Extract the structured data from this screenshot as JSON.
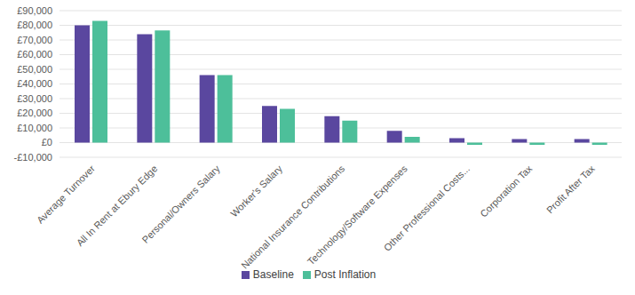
{
  "chart_data": {
    "type": "bar",
    "categories": [
      "Average Turnover",
      "All In Rent at Ebury Edge",
      "Personal/Owners Salary",
      "Worker's Salary",
      "National Insurance Contributions",
      "Technology/Software Expenses",
      "Other Professional Costs...",
      "Corporation Tax",
      "Profit After Tax"
    ],
    "series": [
      {
        "name": "Baseline",
        "color": "#5a479f",
        "values": [
          80000,
          74000,
          46000,
          25000,
          18000,
          8000,
          3000,
          2500,
          2500
        ]
      },
      {
        "name": "Post Inflation",
        "color": "#4dbf9a",
        "values": [
          83000,
          76500,
          46000,
          23000,
          15000,
          4000,
          -1500,
          -1500,
          -1500
        ]
      }
    ],
    "ylim": [
      -10000,
      90000
    ],
    "yticks": [
      {
        "value": -10000,
        "label": "-£10,000"
      },
      {
        "value": 0,
        "label": "£0"
      },
      {
        "value": 10000,
        "label": "£10,000"
      },
      {
        "value": 20000,
        "label": "£20,000"
      },
      {
        "value": 30000,
        "label": "£30,000"
      },
      {
        "value": 40000,
        "label": "£40,000"
      },
      {
        "value": 50000,
        "label": "£50,000"
      },
      {
        "value": 60000,
        "label": "£60,000"
      },
      {
        "value": 70000,
        "label": "£70,000"
      },
      {
        "value": 80000,
        "label": "£80,000"
      },
      {
        "value": 90000,
        "label": "£90,000"
      }
    ],
    "grid": true,
    "legend": "bottom"
  }
}
